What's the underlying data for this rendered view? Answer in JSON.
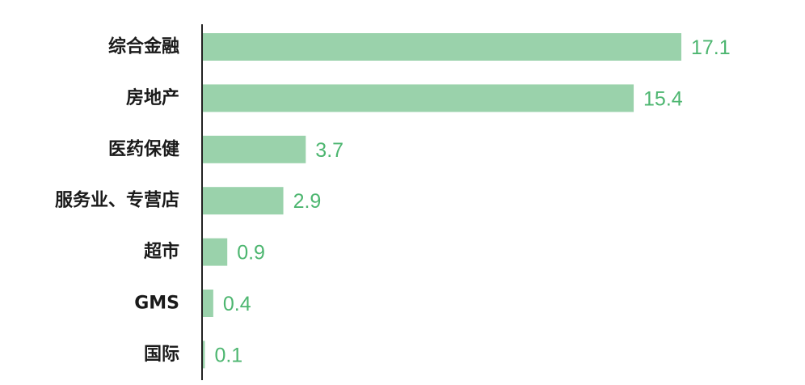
{
  "chart_data": {
    "type": "bar",
    "orientation": "horizontal",
    "categories": [
      "综合金融",
      "房地产",
      "医药保健",
      "服务业、专营店",
      "超市",
      "GMS",
      "国际"
    ],
    "values": [
      17.1,
      15.4,
      3.7,
      2.9,
      0.9,
      0.4,
      0.1
    ],
    "value_labels": [
      "17.1",
      "15.4",
      "3.7",
      "2.9",
      "0.9",
      "0.4",
      "0.1"
    ],
    "title": "",
    "xlabel": "",
    "ylabel": "",
    "xlim": [
      0,
      17.1
    ],
    "grid": false,
    "legend": "none"
  },
  "colors": {
    "bar": "#9ad2ab",
    "value_text": "#4db670",
    "axis": "#222222",
    "category_text": "#1a1a1a"
  }
}
